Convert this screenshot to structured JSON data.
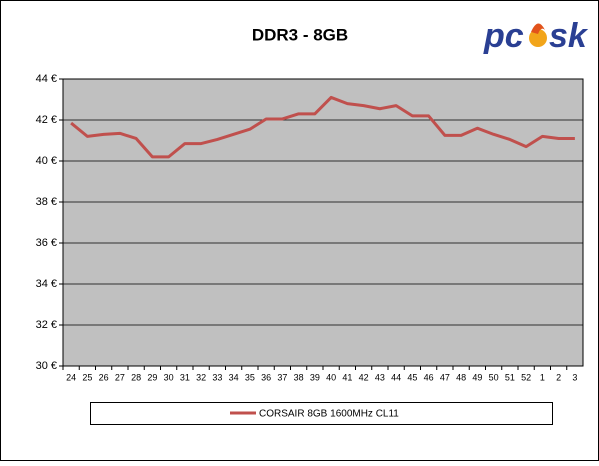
{
  "chart_data": {
    "type": "line",
    "title": "DDR3 - 8GB",
    "logo": {
      "left": "pc",
      "right": "sk"
    },
    "categories": [
      "24",
      "25",
      "26",
      "27",
      "28",
      "29",
      "30",
      "31",
      "32",
      "33",
      "34",
      "35",
      "36",
      "37",
      "38",
      "39",
      "40",
      "41",
      "42",
      "43",
      "44",
      "45",
      "46",
      "47",
      "48",
      "49",
      "50",
      "51",
      "52",
      "1",
      "2",
      "3"
    ],
    "series": [
      {
        "name": "CORSAIR 8GB 1600MHz CL11",
        "color": "#c0504d",
        "values": [
          41.85,
          41.2,
          41.3,
          41.35,
          41.1,
          40.2,
          40.2,
          40.85,
          40.85,
          41.05,
          41.3,
          41.55,
          42.05,
          42.05,
          42.3,
          42.3,
          43.1,
          42.8,
          42.7,
          42.55,
          42.7,
          42.2,
          42.2,
          41.25,
          41.25,
          41.6,
          41.3,
          41.05,
          40.7,
          41.2,
          41.1,
          41.1
        ]
      }
    ],
    "ylim": [
      30,
      44
    ],
    "yticks": [
      {
        "value": 30,
        "label": "30 €"
      },
      {
        "value": 32,
        "label": "32 €"
      },
      {
        "value": 34,
        "label": "34 €"
      },
      {
        "value": 36,
        "label": "36 €"
      },
      {
        "value": 38,
        "label": "38 €"
      },
      {
        "value": 40,
        "label": "40 €"
      },
      {
        "value": 42,
        "label": "42 €"
      },
      {
        "value": 44,
        "label": "44 €"
      }
    ],
    "grid": true,
    "legend": "bottom"
  }
}
